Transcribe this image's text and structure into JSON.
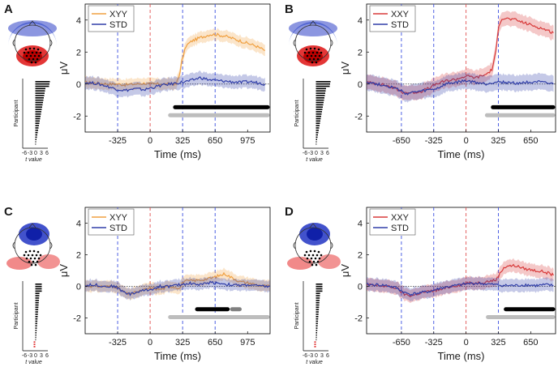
{
  "chart_data": [
    {
      "panel": "A",
      "type": "line",
      "ylabel": "μV",
      "xlabel": "Time (ms)",
      "xlim": [
        -650,
        1200
      ],
      "ylim": [
        -3,
        5
      ],
      "xticks": [
        -325,
        0,
        325,
        650,
        975
      ],
      "yticks": [
        -2,
        0,
        2,
        4
      ],
      "vlines": [
        {
          "x": -325,
          "color": "#3b4fe0"
        },
        {
          "x": 0,
          "color": "#e05050"
        },
        {
          "x": 325,
          "color": "#3b4fe0"
        },
        {
          "x": 650,
          "color": "#3b4fe0"
        }
      ],
      "series": [
        {
          "name": "XYY",
          "color": "#f0a040",
          "x": [
            -650,
            -500,
            -400,
            -325,
            -250,
            -150,
            -50,
            0,
            100,
            200,
            260,
            290,
            320,
            360,
            420,
            500,
            600,
            650,
            750,
            850,
            950,
            1050,
            1150
          ],
          "values": [
            0.1,
            0.05,
            0.0,
            0.0,
            -0.05,
            0.0,
            0.05,
            0.0,
            0.0,
            0.0,
            0.0,
            0.5,
            1.5,
            2.4,
            2.7,
            2.9,
            3.1,
            3.1,
            3.0,
            2.8,
            2.6,
            2.4,
            2.1
          ],
          "band": 0.35
        },
        {
          "name": "STD",
          "color": "#303ea8",
          "x": [
            -650,
            -550,
            -450,
            -350,
            -250,
            -150,
            -50,
            0,
            100,
            200,
            300,
            400,
            500,
            600,
            700,
            800,
            900,
            1000,
            1100,
            1150
          ],
          "values": [
            0.1,
            0.05,
            -0.1,
            -0.3,
            -0.4,
            -0.3,
            -0.35,
            -0.25,
            -0.1,
            0.0,
            0.1,
            0.2,
            0.4,
            0.25,
            0.2,
            0.15,
            0.1,
            0.15,
            0.05,
            0.0
          ],
          "band": 0.4
        }
      ],
      "sig_bars": [
        {
          "x": [
            250,
            1200
          ],
          "y": -1.45,
          "color": "black"
        },
        {
          "x": [
            200,
            1200
          ],
          "y": -1.95,
          "color": "#bdbdbd"
        }
      ],
      "legend": [
        "XYY",
        "STD"
      ],
      "legend_position": "top-left",
      "inset": {
        "ylabel": "Participant",
        "xlabel": "t value",
        "xticks": [
          "-6",
          "-3",
          "0",
          "3",
          "6"
        ],
        "topo": "posterior-positive"
      }
    },
    {
      "panel": "B",
      "type": "line",
      "ylabel": "μV",
      "xlabel": "Time (ms)",
      "xlim": [
        -1000,
        900
      ],
      "ylim": [
        -3,
        5
      ],
      "xticks": [
        -650,
        -325,
        0,
        325,
        650
      ],
      "yticks": [
        -2,
        0,
        2,
        4
      ],
      "vlines": [
        {
          "x": -650,
          "color": "#3b4fe0"
        },
        {
          "x": -325,
          "color": "#3b4fe0"
        },
        {
          "x": 0,
          "color": "#e05050"
        },
        {
          "x": 325,
          "color": "#3b4fe0"
        }
      ],
      "series": [
        {
          "name": "XXY",
          "color": "#d83a3a",
          "x": [
            -1000,
            -900,
            -800,
            -700,
            -650,
            -550,
            -450,
            -350,
            -300,
            -200,
            -100,
            0,
            100,
            200,
            260,
            300,
            330,
            360,
            400,
            500,
            600,
            700,
            800,
            880
          ],
          "values": [
            0.1,
            0.05,
            -0.1,
            -0.3,
            -0.5,
            -0.55,
            -0.45,
            -0.2,
            0.0,
            0.2,
            0.3,
            0.5,
            0.4,
            0.6,
            0.9,
            2.0,
            3.7,
            4.1,
            4.1,
            4.0,
            3.8,
            3.6,
            3.4,
            3.2
          ],
          "band": 0.45
        },
        {
          "name": "STD",
          "color": "#303ea8",
          "x": [
            -1000,
            -900,
            -800,
            -700,
            -600,
            -500,
            -400,
            -300,
            -200,
            -100,
            0,
            100,
            200,
            300,
            400,
            500,
            600,
            700,
            800,
            880
          ],
          "values": [
            0.15,
            0.0,
            -0.1,
            -0.3,
            -0.6,
            -0.5,
            -0.4,
            -0.3,
            0.0,
            0.1,
            0.2,
            0.1,
            0.0,
            0.15,
            0.1,
            0.05,
            0.1,
            0.15,
            0.05,
            0.0
          ],
          "band": 0.5
        }
      ],
      "sig_bars": [
        {
          "x": [
            270,
            900
          ],
          "y": -1.45,
          "color": "black"
        },
        {
          "x": [
            210,
            900
          ],
          "y": -1.95,
          "color": "#bdbdbd"
        }
      ],
      "legend": [
        "XXY",
        "STD"
      ],
      "legend_position": "top-left",
      "inset": {
        "ylabel": "Participant",
        "xlabel": "t value",
        "xticks": [
          "-6",
          "-3",
          "0",
          "3",
          "6"
        ],
        "topo": "posterior-positive"
      }
    },
    {
      "panel": "C",
      "type": "line",
      "ylabel": "μV",
      "xlabel": "Time (ms)",
      "xlim": [
        -650,
        1200
      ],
      "ylim": [
        -3,
        5
      ],
      "xticks": [
        -325,
        0,
        325,
        650,
        975
      ],
      "yticks": [
        -2,
        0,
        2,
        4
      ],
      "vlines": [
        {
          "x": -325,
          "color": "#3b4fe0"
        },
        {
          "x": 0,
          "color": "#e05050"
        },
        {
          "x": 325,
          "color": "#3b4fe0"
        },
        {
          "x": 650,
          "color": "#3b4fe0"
        }
      ],
      "series": [
        {
          "name": "XYY",
          "color": "#f0a040",
          "x": [
            -650,
            -550,
            -450,
            -350,
            -280,
            -220,
            -150,
            -50,
            0,
            100,
            200,
            300,
            330,
            400,
            500,
            600,
            700,
            750,
            800,
            900,
            1000,
            1100,
            1200
          ],
          "values": [
            0.05,
            0.0,
            0.0,
            0.0,
            -0.3,
            -0.5,
            -0.4,
            -0.2,
            -0.1,
            -0.2,
            0.0,
            -0.1,
            0.3,
            0.35,
            0.4,
            0.5,
            0.7,
            0.8,
            0.6,
            0.3,
            0.2,
            0.05,
            0.0
          ],
          "band": 0.35
        },
        {
          "name": "STD",
          "color": "#303ea8",
          "x": [
            -650,
            -550,
            -450,
            -350,
            -280,
            -200,
            -100,
            0,
            100,
            200,
            300,
            400,
            500,
            600,
            700,
            800,
            900,
            1000,
            1100,
            1200
          ],
          "values": [
            0.05,
            0.1,
            0.0,
            0.0,
            -0.3,
            -0.5,
            -0.3,
            -0.2,
            0.0,
            0.0,
            0.1,
            0.2,
            0.1,
            0.25,
            0.2,
            0.1,
            0.05,
            0.1,
            0.0,
            0.0
          ],
          "band": 0.35
        }
      ],
      "sig_bars": [
        {
          "x": [
            470,
            800
          ],
          "y": -1.45,
          "color": "black"
        },
        {
          "x": [
            820,
            920
          ],
          "y": -1.45,
          "color": "#808080"
        },
        {
          "x": [
            200,
            1200
          ],
          "y": -1.95,
          "color": "#bdbdbd"
        }
      ],
      "legend": [
        "XYY",
        "STD"
      ],
      "legend_position": "top-left",
      "inset": {
        "ylabel": "Participant",
        "xlabel": "t value",
        "xticks": [
          "-6",
          "-3",
          "0",
          "3",
          "6"
        ],
        "topo": "anterior-negative"
      }
    },
    {
      "panel": "D",
      "type": "line",
      "ylabel": "μV",
      "xlabel": "Time (ms)",
      "xlim": [
        -1000,
        900
      ],
      "ylim": [
        -3,
        5
      ],
      "xticks": [
        -650,
        -325,
        0,
        325,
        650
      ],
      "yticks": [
        -2,
        0,
        2,
        4
      ],
      "vlines": [
        {
          "x": -650,
          "color": "#3b4fe0"
        },
        {
          "x": -325,
          "color": "#3b4fe0"
        },
        {
          "x": 0,
          "color": "#e05050"
        },
        {
          "x": 325,
          "color": "#3b4fe0"
        }
      ],
      "series": [
        {
          "name": "XXY",
          "color": "#d83a3a",
          "x": [
            -1000,
            -900,
            -800,
            -700,
            -620,
            -550,
            -450,
            -350,
            -250,
            -150,
            -50,
            0,
            100,
            200,
            300,
            340,
            380,
            420,
            500,
            600,
            700,
            800,
            880
          ],
          "values": [
            0.1,
            0.05,
            0.0,
            -0.1,
            -0.5,
            -0.6,
            -0.4,
            -0.3,
            -0.2,
            0.0,
            0.1,
            0.2,
            0.2,
            0.3,
            0.4,
            0.8,
            1.2,
            1.3,
            1.3,
            1.1,
            1.0,
            0.9,
            0.7
          ],
          "band": 0.4
        },
        {
          "name": "STD",
          "color": "#303ea8",
          "x": [
            -1000,
            -900,
            -800,
            -700,
            -620,
            -550,
            -450,
            -350,
            -250,
            -150,
            -50,
            0,
            100,
            200,
            300,
            400,
            500,
            600,
            700,
            800,
            880
          ],
          "values": [
            0.1,
            0.1,
            0.05,
            -0.1,
            -0.4,
            -0.5,
            -0.4,
            -0.3,
            -0.1,
            0.0,
            0.1,
            0.15,
            0.2,
            0.15,
            0.1,
            0.05,
            0.05,
            0.1,
            0.05,
            0.1,
            0.05
          ],
          "band": 0.4
        }
      ],
      "sig_bars": [
        {
          "x": [
            400,
            900
          ],
          "y": -1.45,
          "color": "black"
        },
        {
          "x": [
            220,
            900
          ],
          "y": -1.95,
          "color": "#bdbdbd"
        }
      ],
      "legend": [
        "XXY",
        "STD"
      ],
      "legend_position": "top-left",
      "inset": {
        "ylabel": "Participant",
        "xlabel": "t value",
        "xticks": [
          "-6",
          "-3",
          "0",
          "3",
          "6"
        ],
        "topo": "anterior-negative"
      }
    }
  ]
}
